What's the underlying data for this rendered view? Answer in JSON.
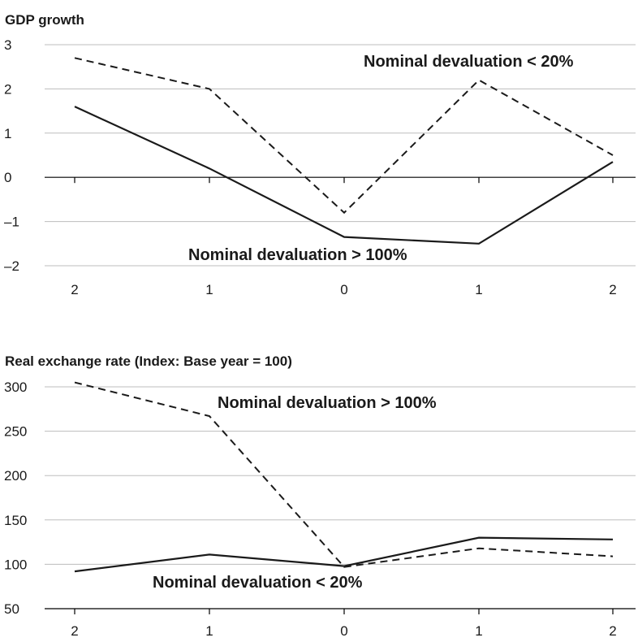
{
  "chart_data": [
    {
      "type": "line",
      "title": "GDP growth",
      "categories": [
        "2",
        "1",
        "0",
        "1",
        "2"
      ],
      "ylim": [
        -2,
        3
      ],
      "yticks": [
        3,
        2,
        1,
        0,
        -1,
        -2
      ],
      "ytick_labels": [
        "3",
        "2",
        "1",
        "0",
        "–1",
        "–2"
      ],
      "grid": true,
      "series": [
        {
          "name": "Nominal devaluation < 20%",
          "style": "dashed",
          "values": [
            2.7,
            2.0,
            -0.8,
            2.2,
            0.5
          ]
        },
        {
          "name": "Nominal devaluation > 100%",
          "style": "solid",
          "values": [
            1.6,
            0.2,
            -1.35,
            -1.5,
            0.35
          ]
        }
      ],
      "annotations": [
        {
          "text": "Nominal devaluation < 20%",
          "series": 0
        },
        {
          "text": "Nominal devaluation > 100%",
          "series": 1
        }
      ]
    },
    {
      "type": "line",
      "title": "Real exchange rate (Index: Base year = 100)",
      "categories": [
        "2",
        "1",
        "0",
        "1",
        "2"
      ],
      "ylim": [
        50,
        300
      ],
      "yticks": [
        300,
        250,
        200,
        150,
        100,
        50
      ],
      "ytick_labels": [
        "300",
        "250",
        "200",
        "150",
        "100",
        "50"
      ],
      "grid": true,
      "series": [
        {
          "name": "Nominal devaluation > 100%",
          "style": "dashed",
          "values": [
            305,
            267,
            97,
            118,
            109
          ]
        },
        {
          "name": "Nominal devaluation < 20%",
          "style": "solid",
          "values": [
            92,
            111,
            98,
            130,
            128
          ]
        }
      ],
      "annotations": [
        {
          "text": "Nominal devaluation > 100%",
          "series": 0
        },
        {
          "text": "Nominal devaluation < 20%",
          "series": 1
        }
      ]
    }
  ]
}
